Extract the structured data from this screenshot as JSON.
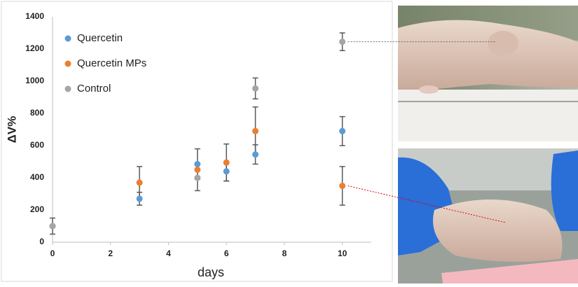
{
  "chart_data": {
    "type": "scatter",
    "y_label": "ΔV%",
    "x_label": "days",
    "x": [
      0,
      3,
      5,
      6,
      7,
      10
    ],
    "series": [
      {
        "name": "Quercetin",
        "color": "#5b9bd5",
        "values": [
          100,
          270,
          485,
          440,
          545,
          690
        ],
        "errors": [
          null,
          40,
          95,
          60,
          60,
          90
        ]
      },
      {
        "name": "Quercetin MPs",
        "color": "#ed7d31",
        "values": [
          100,
          370,
          450,
          495,
          690,
          350
        ],
        "errors": [
          null,
          100,
          null,
          115,
          150,
          120
        ]
      },
      {
        "name": "Control",
        "color": "#a5a5a5",
        "values": [
          100,
          null,
          400,
          null,
          955,
          1245
        ],
        "errors": [
          50,
          null,
          80,
          null,
          65,
          55
        ]
      }
    ],
    "xlim": [
      0,
      11
    ],
    "xticks": [
      0,
      2,
      4,
      6,
      8,
      10
    ],
    "ylim": [
      0,
      1400
    ],
    "yticks": [
      0,
      200,
      400,
      600,
      800,
      1000,
      1200,
      1400
    ],
    "grid": false,
    "legend": "upper left"
  }
}
